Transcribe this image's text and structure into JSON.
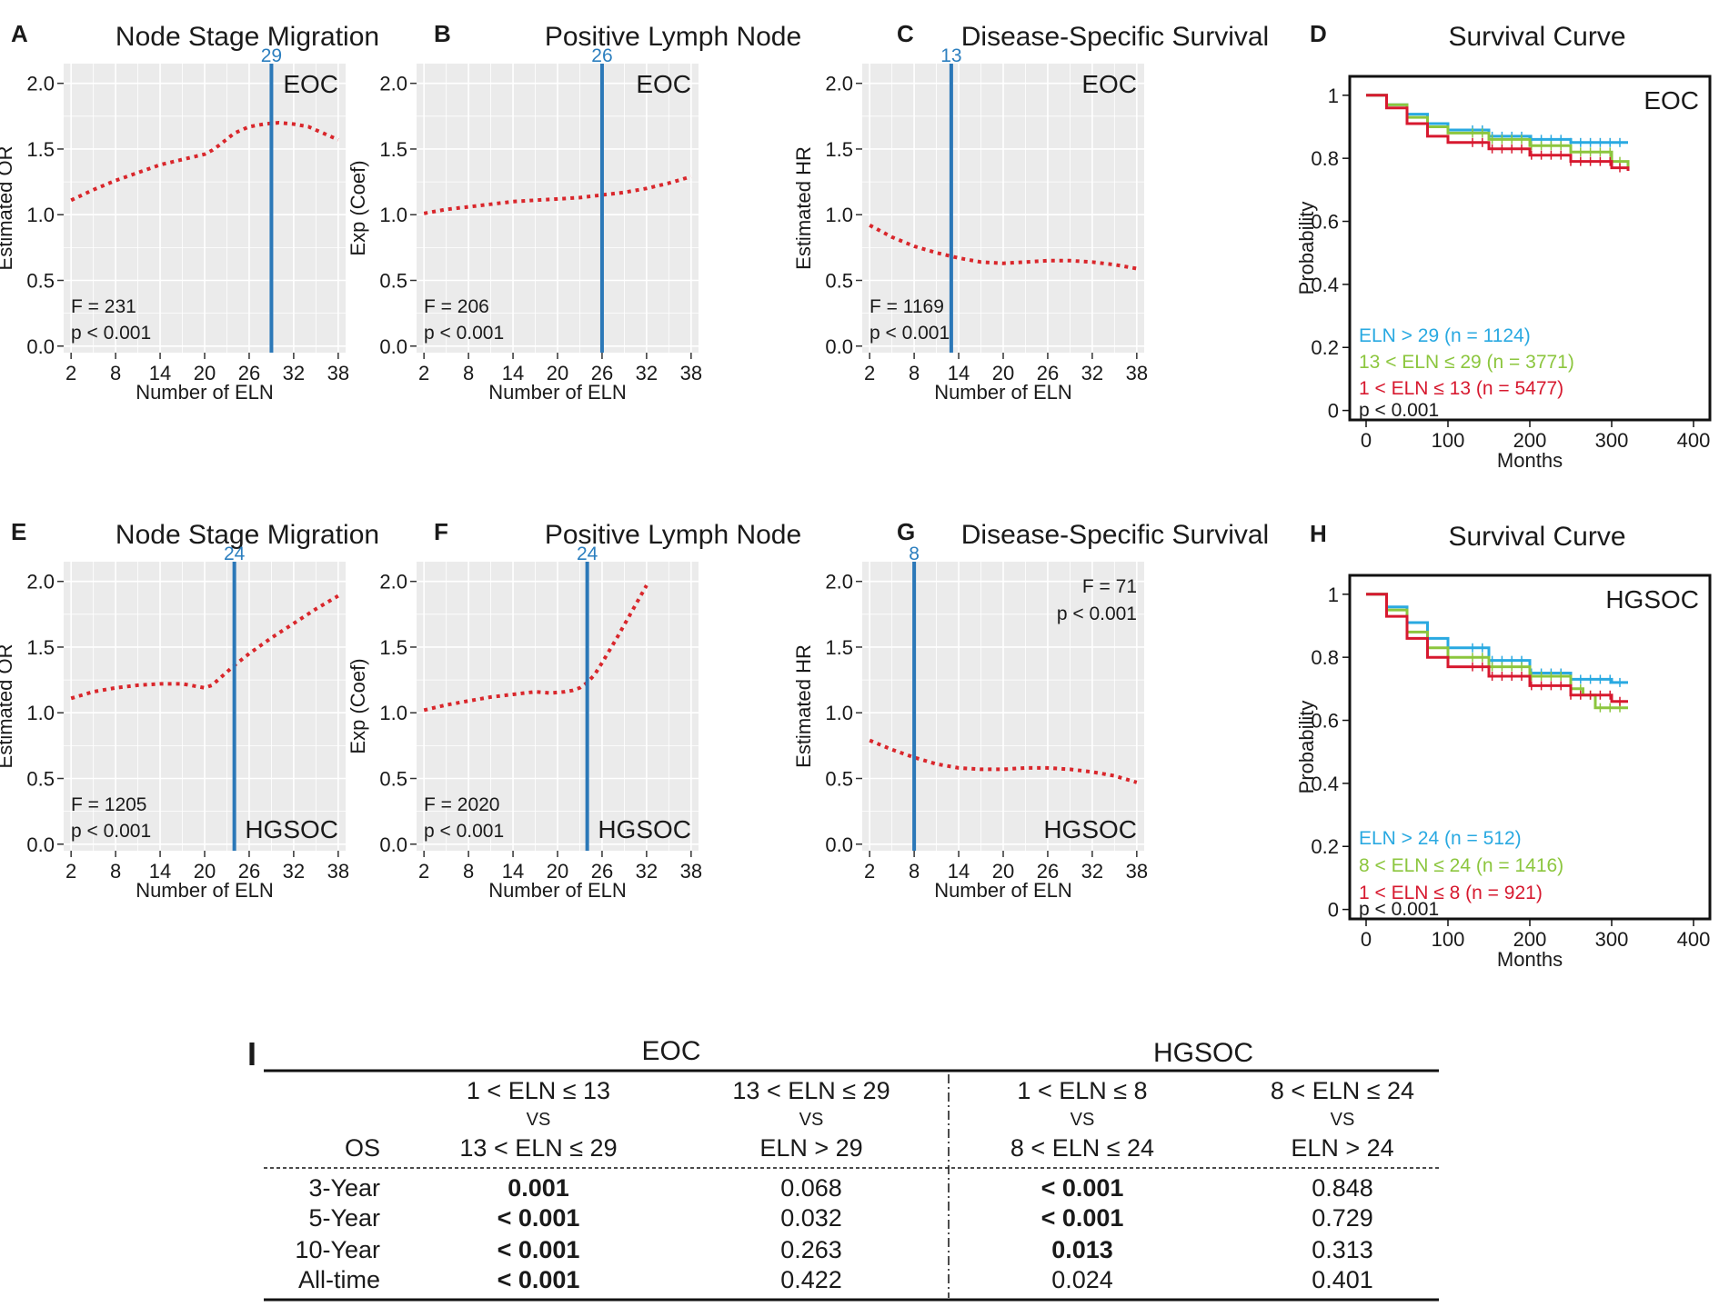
{
  "colors": {
    "panel_bg": "#ebebeb",
    "grid": "#ffffff",
    "curve": "#d9262b",
    "cutoff": "#2b78b8",
    "cutoff_label": "#2c7fbf",
    "km_high": "#29a9e1",
    "km_mid": "#8cc63e",
    "km_low": "#d7192f",
    "text": "#1a1a1a"
  },
  "chart_data": [
    {
      "panel": "A",
      "type": "line",
      "title": "Node Stage Migration",
      "xlabel": "Number of ELN",
      "ylabel": "Estimated OR",
      "xlim": [
        1,
        39
      ],
      "ylim": [
        -0.05,
        2.15
      ],
      "xticks": [
        2,
        8,
        14,
        20,
        26,
        32,
        38
      ],
      "yticks": [
        0,
        0.5,
        1,
        1.5,
        2
      ],
      "ytick_labels": [
        "0.0",
        "0.5",
        "1.0",
        "1.5",
        "2.0"
      ],
      "cutoff": 29,
      "cutoff_label": "29",
      "cohort": "EOC",
      "cohort_pos": "top-right",
      "stats": [
        "F = 231",
        "p < 0.001"
      ],
      "stats_pos": "bottom-left",
      "x": [
        2,
        5,
        8,
        11,
        14,
        17,
        20,
        21,
        22,
        24,
        26,
        28,
        30,
        32,
        34,
        36,
        38
      ],
      "y": [
        1.11,
        1.19,
        1.26,
        1.32,
        1.38,
        1.42,
        1.46,
        1.49,
        1.53,
        1.62,
        1.67,
        1.69,
        1.7,
        1.69,
        1.67,
        1.62,
        1.57
      ]
    },
    {
      "panel": "B",
      "type": "line",
      "title": "Positive Lymph Node",
      "xlabel": "Number of ELN",
      "ylabel": "Exp (Coef)",
      "xlim": [
        1,
        39
      ],
      "ylim": [
        -0.05,
        2.15
      ],
      "xticks": [
        2,
        8,
        14,
        20,
        26,
        32,
        38
      ],
      "yticks": [
        0,
        0.5,
        1,
        1.5,
        2
      ],
      "ytick_labels": [
        "0.0",
        "0.5",
        "1.0",
        "1.5",
        "2.0"
      ],
      "cutoff": 26,
      "cutoff_label": "26",
      "cohort": "EOC",
      "cohort_pos": "top-right",
      "stats": [
        "F = 206",
        "p < 0.001"
      ],
      "stats_pos": "bottom-left",
      "x": [
        2,
        5,
        8,
        11,
        14,
        17,
        20,
        23,
        26,
        29,
        32,
        35,
        38
      ],
      "y": [
        1.01,
        1.04,
        1.06,
        1.08,
        1.1,
        1.11,
        1.12,
        1.13,
        1.15,
        1.17,
        1.2,
        1.24,
        1.29
      ]
    },
    {
      "panel": "C",
      "type": "line",
      "title": "Disease-Specific Survival",
      "xlabel": "Number of ELN",
      "ylabel": "Estimated HR",
      "xlim": [
        1,
        39
      ],
      "ylim": [
        -0.05,
        2.15
      ],
      "xticks": [
        2,
        8,
        14,
        20,
        26,
        32,
        38
      ],
      "yticks": [
        0,
        0.5,
        1,
        1.5,
        2
      ],
      "ytick_labels": [
        "0.0",
        "0.5",
        "1.0",
        "1.5",
        "2.0"
      ],
      "cutoff": 13,
      "cutoff_label": "13",
      "cohort": "EOC",
      "cohort_pos": "top-right",
      "stats": [
        "F = 1169",
        "p < 0.001"
      ],
      "stats_pos": "bottom-left",
      "x": [
        2,
        5,
        8,
        11,
        14,
        17,
        20,
        23,
        26,
        29,
        32,
        35,
        38
      ],
      "y": [
        0.92,
        0.83,
        0.76,
        0.71,
        0.67,
        0.64,
        0.63,
        0.64,
        0.65,
        0.65,
        0.64,
        0.62,
        0.59
      ]
    },
    {
      "panel": "D",
      "type": "line",
      "subtype": "kaplan-meier",
      "title": "Survival Curve",
      "xlabel": "Months",
      "ylabel": "Probability",
      "xlim": [
        -20,
        420
      ],
      "ylim": [
        -0.03,
        1.06
      ],
      "xticks": [
        0,
        100,
        200,
        300,
        400
      ],
      "yticks": [
        0,
        0.2,
        0.4,
        0.6,
        0.8,
        1
      ],
      "ytick_labels": [
        "0",
        "0.2",
        "0.4",
        "0.6",
        "0.8",
        "1"
      ],
      "cohort": "EOC",
      "cohort_pos": "top-right",
      "pvalue": "p < 0.001",
      "series": [
        {
          "name": "ELN > 29 (n = 1124)",
          "color_key": "km_high",
          "x": [
            0,
            25,
            50,
            75,
            100,
            150,
            200,
            250,
            300,
            320
          ],
          "y": [
            1.0,
            0.97,
            0.94,
            0.91,
            0.89,
            0.87,
            0.86,
            0.85,
            0.85,
            0.85
          ]
        },
        {
          "name": "13 < ELN ≤ 29 (n = 3771)",
          "color_key": "km_mid",
          "x": [
            0,
            25,
            50,
            75,
            100,
            150,
            200,
            250,
            300,
            320
          ],
          "y": [
            1.0,
            0.97,
            0.93,
            0.9,
            0.88,
            0.86,
            0.84,
            0.82,
            0.79,
            0.77
          ]
        },
        {
          "name": "1 < ELN ≤ 13 (n = 5477)",
          "color_key": "km_low",
          "x": [
            0,
            25,
            50,
            75,
            100,
            150,
            200,
            250,
            300,
            320
          ],
          "y": [
            1.0,
            0.96,
            0.91,
            0.87,
            0.85,
            0.83,
            0.81,
            0.79,
            0.77,
            0.76
          ]
        }
      ]
    },
    {
      "panel": "E",
      "type": "line",
      "title": "Node Stage Migration",
      "xlabel": "Number of ELN",
      "ylabel": "Estimated OR",
      "xlim": [
        1,
        39
      ],
      "ylim": [
        -0.05,
        2.15
      ],
      "xticks": [
        2,
        8,
        14,
        20,
        26,
        32,
        38
      ],
      "yticks": [
        0,
        0.5,
        1,
        1.5,
        2
      ],
      "ytick_labels": [
        "0.0",
        "0.5",
        "1.0",
        "1.5",
        "2.0"
      ],
      "cutoff": 24,
      "cutoff_label": "24",
      "cohort": "HGSOC",
      "cohort_pos": "bottom-right",
      "stats": [
        "F = 1205",
        "p < 0.001"
      ],
      "stats_pos": "bottom-left",
      "x": [
        2,
        5,
        8,
        11,
        14,
        17,
        19,
        20,
        21,
        22,
        24,
        26,
        29,
        32,
        35,
        38
      ],
      "y": [
        1.11,
        1.16,
        1.19,
        1.21,
        1.22,
        1.22,
        1.2,
        1.19,
        1.21,
        1.26,
        1.36,
        1.45,
        1.57,
        1.68,
        1.79,
        1.89
      ]
    },
    {
      "panel": "F",
      "type": "line",
      "title": "Positive Lymph Node",
      "xlabel": "Number of ELN",
      "ylabel": "Exp (Coef)",
      "xlim": [
        1,
        39
      ],
      "ylim": [
        -0.05,
        2.15
      ],
      "xticks": [
        2,
        8,
        14,
        20,
        26,
        32,
        38
      ],
      "yticks": [
        0,
        0.5,
        1,
        1.5,
        2
      ],
      "ytick_labels": [
        "0.0",
        "0.5",
        "1.0",
        "1.5",
        "2.0"
      ],
      "cutoff": 24,
      "cutoff_label": "24",
      "cohort": "HGSOC",
      "cohort_pos": "bottom-right",
      "stats": [
        "F = 2020",
        "p < 0.001"
      ],
      "stats_pos": "bottom-left",
      "x": [
        2,
        5,
        8,
        11,
        14,
        17,
        19,
        21,
        22,
        23,
        24,
        25,
        26,
        28,
        30,
        32
      ],
      "y": [
        1.02,
        1.06,
        1.09,
        1.12,
        1.14,
        1.16,
        1.15,
        1.16,
        1.17,
        1.19,
        1.23,
        1.29,
        1.38,
        1.57,
        1.77,
        1.97
      ]
    },
    {
      "panel": "G",
      "type": "line",
      "title": "Disease-Specific Survival",
      "xlabel": "Number of ELN",
      "ylabel": "Estimated HR",
      "xlim": [
        1,
        39
      ],
      "ylim": [
        -0.05,
        2.15
      ],
      "xticks": [
        2,
        8,
        14,
        20,
        26,
        32,
        38
      ],
      "yticks": [
        0,
        0.5,
        1,
        1.5,
        2
      ],
      "ytick_labels": [
        "0.0",
        "0.5",
        "1.0",
        "1.5",
        "2.0"
      ],
      "cutoff": 8,
      "cutoff_label": "8",
      "cohort": "HGSOC",
      "cohort_pos": "bottom-right",
      "stats": [
        "F = 71",
        "p < 0.001"
      ],
      "stats_pos": "top-right",
      "x": [
        2,
        5,
        8,
        11,
        14,
        17,
        20,
        23,
        26,
        29,
        32,
        35,
        38
      ],
      "y": [
        0.79,
        0.72,
        0.66,
        0.61,
        0.58,
        0.57,
        0.57,
        0.58,
        0.58,
        0.57,
        0.55,
        0.52,
        0.47
      ]
    },
    {
      "panel": "H",
      "type": "line",
      "subtype": "kaplan-meier",
      "title": "Survival Curve",
      "xlabel": "Months",
      "ylabel": "Probability",
      "xlim": [
        -20,
        420
      ],
      "ylim": [
        -0.03,
        1.06
      ],
      "xticks": [
        0,
        100,
        200,
        300,
        400
      ],
      "yticks": [
        0,
        0.2,
        0.4,
        0.6,
        0.8,
        1
      ],
      "ytick_labels": [
        "0",
        "0.2",
        "0.4",
        "0.6",
        "0.8",
        "1"
      ],
      "cohort": "HGSOC",
      "cohort_pos": "top-right",
      "pvalue": "p < 0.001",
      "series": [
        {
          "name": "ELN > 24 (n = 512)",
          "color_key": "km_high",
          "x": [
            0,
            25,
            50,
            75,
            100,
            150,
            200,
            250,
            300,
            320
          ],
          "y": [
            1.0,
            0.96,
            0.91,
            0.86,
            0.83,
            0.79,
            0.75,
            0.73,
            0.72,
            0.72
          ]
        },
        {
          "name": "8 < ELN ≤ 24 (n = 1416)",
          "color_key": "km_mid",
          "x": [
            0,
            25,
            50,
            75,
            100,
            150,
            200,
            250,
            265,
            280,
            320
          ],
          "y": [
            1.0,
            0.95,
            0.88,
            0.83,
            0.8,
            0.77,
            0.74,
            0.7,
            0.68,
            0.64,
            0.64
          ]
        },
        {
          "name": "1 < ELN ≤ 8 (n = 921)",
          "color_key": "km_low",
          "x": [
            0,
            25,
            50,
            75,
            100,
            150,
            200,
            250,
            300,
            320
          ],
          "y": [
            1.0,
            0.93,
            0.86,
            0.8,
            0.77,
            0.74,
            0.71,
            0.68,
            0.66,
            0.66
          ]
        }
      ]
    },
    {
      "panel": "I",
      "type": "table",
      "col_groups": [
        "EOC",
        "HGSOC"
      ],
      "row_header": "OS",
      "columns": [
        {
          "top": "1 < ELN ≤ 13",
          "mid": "VS",
          "bot": "13 < ELN ≤ 29"
        },
        {
          "top": "13 < ELN ≤ 29",
          "mid": "VS",
          "bot": "ELN > 29"
        },
        {
          "top": "1 < ELN ≤ 8",
          "mid": "VS",
          "bot": "8 < ELN ≤ 24"
        },
        {
          "top": "8 < ELN ≤ 24",
          "mid": "VS",
          "bot": "ELN > 24"
        }
      ],
      "rows": [
        {
          "label": "3-Year",
          "values": [
            "0.001",
            "0.068",
            "< 0.001",
            "0.848"
          ],
          "bold": [
            true,
            false,
            true,
            false
          ]
        },
        {
          "label": "5-Year",
          "values": [
            "< 0.001",
            "0.032",
            "< 0.001",
            "0.729"
          ],
          "bold": [
            true,
            false,
            true,
            false
          ]
        },
        {
          "label": "10-Year",
          "values": [
            "< 0.001",
            "0.263",
            "0.013",
            "0.313"
          ],
          "bold": [
            true,
            false,
            true,
            false
          ]
        },
        {
          "label": "All-time",
          "values": [
            "< 0.001",
            "0.422",
            "0.024",
            "0.401"
          ],
          "bold": [
            true,
            false,
            false,
            false
          ]
        }
      ]
    }
  ]
}
